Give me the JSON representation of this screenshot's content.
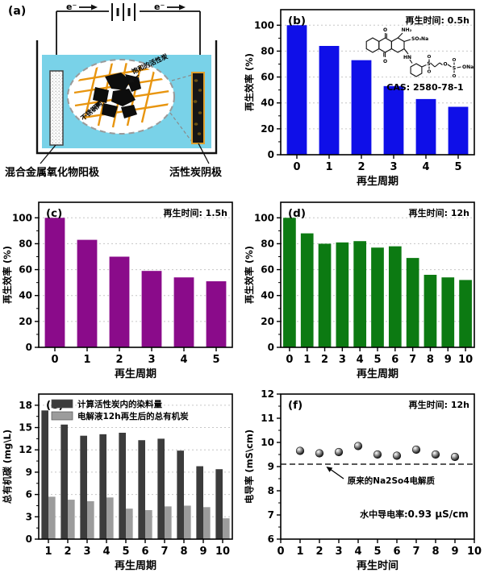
{
  "panels": {
    "a": {
      "label": "(a)",
      "electron_left": "e⁻",
      "electron_right": "e⁻",
      "anode_label": "混合金属氧化物阳极",
      "cathode_label": "活性炭阴极",
      "saturated_carbon_label": "饱和的活性炭",
      "mesh_label": "不锈钢网",
      "colors": {
        "water": "#79d2e8",
        "grid": "#e8950f",
        "cathode_border": "#dfa02f"
      }
    }
  },
  "structure_inset": {
    "cas": "CAS: 2580-78-1",
    "atoms": {
      "o_top": "O",
      "o_bottom": "O",
      "nh2": "NH₂",
      "so3na": "SO₃Na",
      "hn": "HN",
      "s1": "S",
      "o1": "O",
      "o2": "O",
      "o_ether": "O",
      "s2": "S",
      "o3": "O",
      "o4": "O",
      "ona": "ONa"
    }
  },
  "chart_data": [
    {
      "id": "chart-b",
      "type": "bar",
      "panel": "(b)",
      "annotation": "再生时间: 0.5h",
      "categories": [
        "0",
        "1",
        "2",
        "3",
        "4",
        "5"
      ],
      "values": [
        100,
        84,
        73,
        53,
        43,
        37
      ],
      "bar_color": "#0f0fe8",
      "bar_frac": 0.62,
      "xlabel": "再生周期",
      "ylabel": "再生效率 (%)",
      "ylim": [
        0,
        112
      ],
      "yticks": [
        0,
        20,
        40,
        60,
        80,
        100
      ],
      "grid": true,
      "legend_position": "none"
    },
    {
      "id": "chart-c",
      "type": "bar",
      "panel": "(c)",
      "annotation": "再生时间: 1.5h",
      "categories": [
        "0",
        "1",
        "2",
        "3",
        "4",
        "5"
      ],
      "values": [
        100,
        83,
        70,
        59,
        54,
        51
      ],
      "bar_color": "#8a0b8a",
      "bar_frac": 0.62,
      "xlabel": "再生周期",
      "ylabel": "再生效率 (%)",
      "ylim": [
        0,
        112
      ],
      "yticks": [
        0,
        20,
        40,
        60,
        80,
        100
      ],
      "grid": true,
      "legend_position": "none"
    },
    {
      "id": "chart-d",
      "type": "bar",
      "panel": "(d)",
      "annotation": "再生时间: 12h",
      "categories": [
        "0",
        "1",
        "2",
        "3",
        "4",
        "5",
        "6",
        "7",
        "8",
        "9",
        "10"
      ],
      "values": [
        100,
        88,
        80,
        81,
        82,
        77,
        78,
        69,
        56,
        54,
        52
      ],
      "bar_color": "#0c7a12",
      "bar_frac": 0.72,
      "xlabel": "再生周期",
      "ylabel": "再生效率 (%)",
      "ylim": [
        0,
        112
      ],
      "yticks": [
        0,
        20,
        40,
        60,
        80,
        100
      ],
      "grid": true,
      "legend_position": "none"
    },
    {
      "id": "chart-e",
      "type": "grouped-bar",
      "panel": "(e)",
      "annotation": "",
      "categories": [
        "1",
        "2",
        "3",
        "4",
        "5",
        "6",
        "7",
        "8",
        "9",
        "10"
      ],
      "series": [
        {
          "name": "计算活性炭内的染料量",
          "color": "#3c3c3c",
          "values": [
            17.3,
            15.4,
            13.9,
            14.1,
            14.3,
            13.3,
            13.5,
            11.9,
            9.8,
            9.4
          ]
        },
        {
          "name": "电解液12h再生后的总有机炭",
          "color": "#9c9c9c",
          "values": [
            5.7,
            5.3,
            5.1,
            5.6,
            4.1,
            3.9,
            4.4,
            4.5,
            4.3,
            2.8
          ]
        }
      ],
      "xlabel": "再生周期",
      "ylabel": "总有机碳 (mg\\L)",
      "ylim": [
        0,
        19.5
      ],
      "yticks": [
        0,
        3,
        6,
        9,
        12,
        15,
        18
      ],
      "grid": true,
      "legend_position": "top-left"
    },
    {
      "id": "chart-f",
      "type": "scatter",
      "panel": "(f)",
      "annotation": "再生时间: 12h",
      "x": [
        1,
        2,
        3,
        4,
        5,
        6,
        7,
        8,
        9
      ],
      "y": [
        9.65,
        9.55,
        9.6,
        9.85,
        9.5,
        9.45,
        9.7,
        9.5,
        9.4
      ],
      "xlim": [
        0,
        10
      ],
      "xticks": [
        0,
        1,
        2,
        3,
        4,
        5,
        6,
        7,
        8,
        9,
        10
      ],
      "xlabel": "再生时间",
      "ylabel": "电导率 (mS\\cm)",
      "ylim": [
        6,
        12
      ],
      "yticks": [
        6,
        7,
        8,
        9,
        10,
        11,
        12
      ],
      "grid": false,
      "legend_position": "none",
      "dash_y": 9.1,
      "line_label": "原来的Na2So4电解质",
      "line_label_at": [
        3.45,
        8.3
      ],
      "arrow": {
        "x1": 3.25,
        "y1": 8.5,
        "x2": 2.35,
        "y2": 9.0
      },
      "note_label": "水中导电率:",
      "note_value": "0.93 μS/cm",
      "note_at": [
        9.7,
        6.9
      ]
    }
  ]
}
